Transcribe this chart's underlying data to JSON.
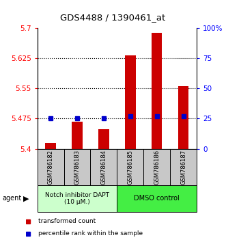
{
  "title": "GDS4488 / 1390461_at",
  "categories": [
    "GSM786182",
    "GSM786183",
    "GSM786184",
    "GSM786185",
    "GSM786186",
    "GSM786187"
  ],
  "red_values": [
    5.415,
    5.467,
    5.448,
    5.632,
    5.688,
    5.555
  ],
  "blue_pct": [
    25,
    25,
    25,
    27,
    27,
    27
  ],
  "ymin": 5.4,
  "ymax": 5.7,
  "y2min": 0,
  "y2max": 100,
  "yticks": [
    5.4,
    5.475,
    5.55,
    5.625,
    5.7
  ],
  "ytick_labels": [
    "5.4",
    "5.475",
    "5.55",
    "5.625",
    "5.7"
  ],
  "y2ticks": [
    0,
    25,
    50,
    75,
    100
  ],
  "y2labels": [
    "0",
    "25",
    "50",
    "75",
    "100%"
  ],
  "gridlines": [
    5.475,
    5.55,
    5.625
  ],
  "bar_width": 0.4,
  "red_color": "#cc0000",
  "blue_color": "#0000cc",
  "group1_label": "Notch inhibitor DAPT\n(10 μM.)",
  "group2_label": "DMSO control",
  "group1_color": "#ccffcc",
  "group2_color": "#44ee44",
  "group1_count": 3,
  "group2_count": 3,
  "legend_red": "transformed count",
  "legend_blue": "percentile rank within the sample",
  "agent_label": "agent",
  "bar_bottom": 5.4
}
